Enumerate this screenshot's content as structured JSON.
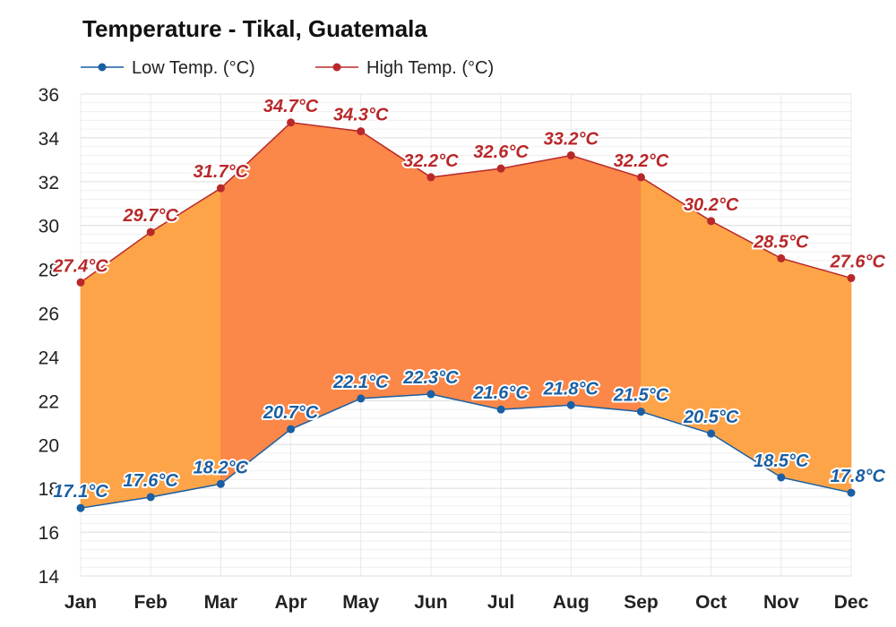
{
  "chart_data": {
    "type": "area",
    "title": "Temperature - Tikal, Guatemala",
    "categories": [
      "Jan",
      "Feb",
      "Mar",
      "Apr",
      "May",
      "Jun",
      "Jul",
      "Aug",
      "Sep",
      "Oct",
      "Nov",
      "Dec"
    ],
    "series": [
      {
        "name": "Low Temp. (°C)",
        "color": "#1a5fa3",
        "values": [
          17.1,
          17.6,
          18.2,
          20.7,
          22.1,
          22.3,
          21.6,
          21.8,
          21.5,
          20.5,
          18.5,
          17.8
        ],
        "labels": [
          "17.1°C",
          "17.6°C",
          "18.2°C",
          "20.7°C",
          "22.1°C",
          "22.3°C",
          "21.6°C",
          "21.8°C",
          "21.5°C",
          "20.5°C",
          "18.5°C",
          "17.8°C"
        ]
      },
      {
        "name": "High Temp. (°C)",
        "color": "#b8282a",
        "values": [
          27.4,
          29.7,
          31.7,
          34.7,
          34.3,
          32.2,
          32.6,
          33.2,
          32.2,
          30.2,
          28.5,
          27.6
        ],
        "labels": [
          "27.4°C",
          "29.7°C",
          "31.7°C",
          "34.7°C",
          "34.3°C",
          "32.2°C",
          "32.6°C",
          "33.2°C",
          "32.2°C",
          "30.2°C",
          "28.5°C",
          "27.6°C"
        ]
      }
    ],
    "yticks": [
      "14",
      "16",
      "18",
      "20",
      "22",
      "24",
      "26",
      "28",
      "30",
      "32",
      "34",
      "36"
    ],
    "ylim": [
      14,
      36
    ],
    "xlabel": "",
    "ylabel": "",
    "grid": true,
    "legend": "top-left",
    "fill_colors": {
      "hot": "#fb8748",
      "warm": "#fda449"
    }
  }
}
